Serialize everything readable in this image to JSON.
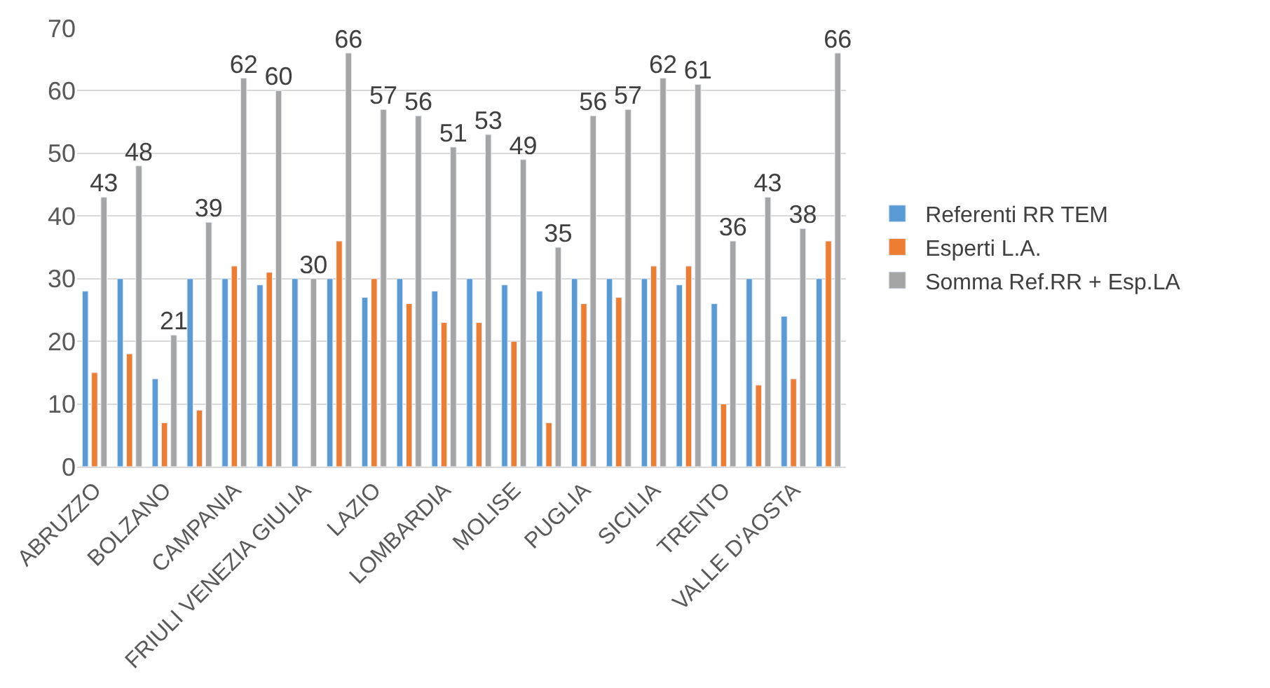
{
  "chart_data": {
    "type": "bar",
    "categories": [
      "ABRUZZO",
      null,
      "BOLZANO",
      null,
      "CAMPANIA",
      null,
      "FRIULI VENEZIA GIULIA",
      null,
      "LAZIO",
      null,
      "LOMBARDIA",
      null,
      "MOLISE",
      null,
      "PUGLIA",
      null,
      "SICILIA",
      null,
      "TRENTO",
      null,
      "VALLE D'AOSTA",
      null
    ],
    "series": [
      {
        "name": "Referenti RR TEM",
        "color": "#5b9bd5",
        "values": [
          28,
          30,
          14,
          30,
          30,
          29,
          30,
          30,
          27,
          30,
          28,
          30,
          29,
          28,
          30,
          30,
          30,
          29,
          26,
          30,
          24,
          30
        ]
      },
      {
        "name": "Esperti L.A.",
        "color": "#ed7d31",
        "values": [
          15,
          18,
          7,
          9,
          32,
          31,
          null,
          36,
          30,
          26,
          23,
          23,
          20,
          7,
          26,
          27,
          32,
          32,
          10,
          13,
          14,
          36
        ]
      },
      {
        "name": "Somma Ref.RR + Esp.LA",
        "color": "#a5a5a5",
        "values": [
          43,
          48,
          21,
          39,
          62,
          60,
          30,
          66,
          57,
          56,
          51,
          53,
          49,
          35,
          56,
          57,
          62,
          61,
          36,
          43,
          38,
          66
        ],
        "value_labels": [
          "43",
          "48",
          "21",
          "39",
          "62",
          "60",
          "30",
          "66",
          "57",
          "56",
          "51",
          "53",
          "49",
          "35",
          "56",
          "57",
          "62",
          "61",
          "36",
          "43",
          "38",
          "66"
        ]
      }
    ],
    "ylim": [
      0,
      70
    ],
    "yticks": [
      0,
      10,
      20,
      30,
      40,
      50,
      60,
      70
    ],
    "grid": "y",
    "legend": "right"
  }
}
